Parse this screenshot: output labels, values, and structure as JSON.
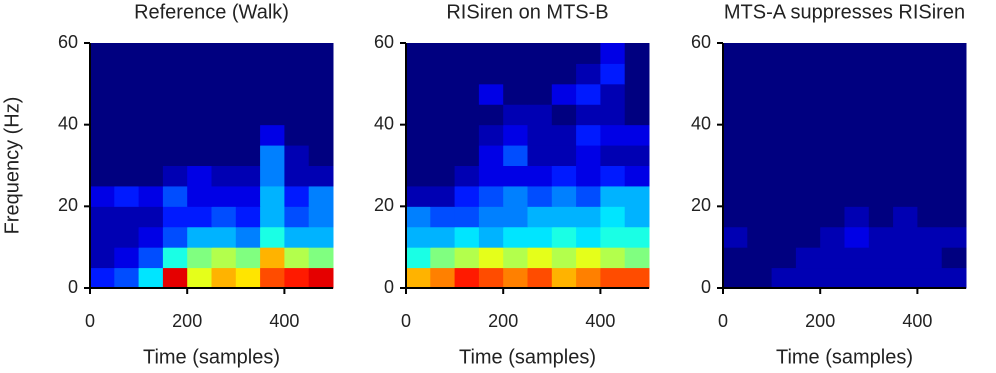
{
  "chart_data": [
    {
      "type": "heatmap",
      "title": "Reference (Walk)",
      "xlabel": "Time (samples)",
      "ylabel": "Frequency (Hz)",
      "xlim": [
        0,
        500
      ],
      "ylim": [
        0,
        60
      ],
      "xticks": [
        0,
        200,
        400
      ],
      "yticks": [
        0,
        20,
        40,
        60
      ],
      "colormap": "jet",
      "xbins": [
        0,
        50,
        100,
        150,
        200,
        250,
        300,
        350,
        400,
        450,
        500
      ],
      "ybins": [
        0,
        5,
        10,
        15,
        20,
        25,
        30,
        35,
        40,
        45,
        50,
        55,
        60
      ],
      "values": [
        [
          0.15,
          0.2,
          0.35,
          0.9,
          0.6,
          0.7,
          0.65,
          0.8,
          0.85,
          0.9
        ],
        [
          0.05,
          0.1,
          0.2,
          0.4,
          0.5,
          0.55,
          0.5,
          0.7,
          0.55,
          0.5
        ],
        [
          0.05,
          0.05,
          0.1,
          0.2,
          0.3,
          0.3,
          0.25,
          0.4,
          0.3,
          0.3
        ],
        [
          0.05,
          0.05,
          0.05,
          0.15,
          0.15,
          0.2,
          0.15,
          0.3,
          0.2,
          0.25
        ],
        [
          0.1,
          0.15,
          0.1,
          0.2,
          0.1,
          0.1,
          0.1,
          0.3,
          0.15,
          0.25
        ],
        [
          0,
          0,
          0,
          0.05,
          0.1,
          0.05,
          0.05,
          0.25,
          0.05,
          0.05
        ],
        [
          0,
          0,
          0,
          0,
          0,
          0,
          0,
          0.25,
          0.05,
          0
        ],
        [
          0,
          0,
          0,
          0,
          0,
          0,
          0,
          0.1,
          0,
          0
        ],
        [
          0,
          0,
          0,
          0,
          0,
          0,
          0,
          0,
          0,
          0
        ],
        [
          0,
          0,
          0,
          0,
          0,
          0,
          0,
          0,
          0,
          0
        ],
        [
          0,
          0,
          0,
          0,
          0,
          0,
          0,
          0,
          0,
          0
        ],
        [
          0,
          0,
          0,
          0,
          0,
          0,
          0,
          0,
          0,
          0
        ]
      ]
    },
    {
      "type": "heatmap",
      "title": "RISiren on MTS-B",
      "xlabel": "Time (samples)",
      "xlim": [
        0,
        500
      ],
      "ylim": [
        0,
        60
      ],
      "xticks": [
        0,
        200,
        400
      ],
      "yticks": [
        0,
        20,
        40,
        60
      ],
      "colormap": "jet",
      "xbins": [
        0,
        50,
        100,
        150,
        200,
        250,
        300,
        350,
        400,
        450,
        500
      ],
      "ybins": [
        0,
        5,
        10,
        15,
        20,
        25,
        30,
        35,
        40,
        45,
        50,
        55,
        60
      ],
      "values": [
        [
          0.7,
          0.75,
          0.85,
          0.8,
          0.75,
          0.8,
          0.7,
          0.75,
          0.8,
          0.8
        ],
        [
          0.4,
          0.5,
          0.55,
          0.6,
          0.55,
          0.6,
          0.55,
          0.6,
          0.55,
          0.5
        ],
        [
          0.3,
          0.3,
          0.35,
          0.3,
          0.35,
          0.35,
          0.4,
          0.35,
          0.4,
          0.4
        ],
        [
          0.25,
          0.2,
          0.2,
          0.25,
          0.25,
          0.3,
          0.3,
          0.3,
          0.35,
          0.3
        ],
        [
          0.05,
          0.05,
          0.15,
          0.2,
          0.25,
          0.2,
          0.25,
          0.2,
          0.3,
          0.3
        ],
        [
          0,
          0,
          0.05,
          0.1,
          0.1,
          0.1,
          0.15,
          0.1,
          0.15,
          0.1
        ],
        [
          0,
          0,
          0,
          0.1,
          0.2,
          0.05,
          0.05,
          0.1,
          0.05,
          0.05
        ],
        [
          0,
          0,
          0,
          0.05,
          0.1,
          0.05,
          0.05,
          0.15,
          0.1,
          0.1
        ],
        [
          0,
          0,
          0,
          0,
          0.05,
          0.05,
          0,
          0.05,
          0.05,
          0
        ],
        [
          0,
          0,
          0,
          0.1,
          0,
          0,
          0.1,
          0.15,
          0.05,
          0
        ],
        [
          0,
          0,
          0,
          0,
          0,
          0,
          0,
          0.05,
          0.15,
          0
        ],
        [
          0,
          0,
          0,
          0,
          0,
          0,
          0,
          0,
          0.1,
          0
        ]
      ]
    },
    {
      "type": "heatmap",
      "title": "MTS-A suppresses RISiren",
      "xlabel": "Time (samples)",
      "xlim": [
        0,
        500
      ],
      "ylim": [
        0,
        60
      ],
      "xticks": [
        0,
        200,
        400
      ],
      "yticks": [
        0,
        20,
        40,
        60
      ],
      "colormap": "jet",
      "xbins": [
        0,
        50,
        100,
        150,
        200,
        250,
        300,
        350,
        400,
        450,
        500
      ],
      "ybins": [
        0,
        5,
        10,
        15,
        20,
        25,
        30,
        35,
        40,
        45,
        50,
        55,
        60
      ],
      "values": [
        [
          0,
          0,
          0.05,
          0.05,
          0.05,
          0.05,
          0.05,
          0.05,
          0.05,
          0.05
        ],
        [
          0,
          0,
          0,
          0.05,
          0.05,
          0.05,
          0.05,
          0.05,
          0.05,
          0
        ],
        [
          0.05,
          0,
          0,
          0,
          0.05,
          0.1,
          0.05,
          0.05,
          0.05,
          0.05
        ],
        [
          0,
          0,
          0,
          0,
          0,
          0.05,
          0,
          0.05,
          0,
          0
        ],
        [
          0,
          0,
          0,
          0,
          0,
          0,
          0,
          0,
          0,
          0
        ],
        [
          0,
          0,
          0,
          0,
          0,
          0,
          0,
          0,
          0,
          0
        ],
        [
          0,
          0,
          0,
          0,
          0,
          0,
          0,
          0,
          0,
          0
        ],
        [
          0,
          0,
          0,
          0,
          0,
          0,
          0,
          0,
          0,
          0
        ],
        [
          0,
          0,
          0,
          0,
          0,
          0,
          0,
          0,
          0,
          0
        ],
        [
          0,
          0,
          0,
          0,
          0,
          0,
          0,
          0,
          0,
          0
        ],
        [
          0,
          0,
          0,
          0,
          0,
          0,
          0,
          0,
          0,
          0
        ],
        [
          0,
          0,
          0,
          0,
          0,
          0,
          0,
          0,
          0,
          0
        ]
      ]
    }
  ]
}
